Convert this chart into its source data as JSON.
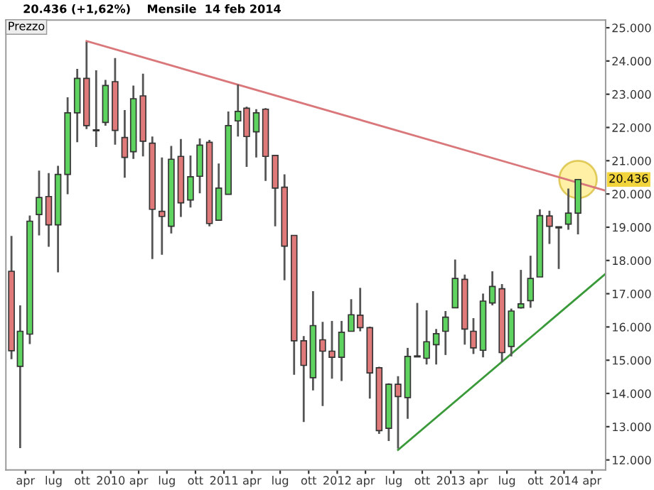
{
  "chart_data": {
    "type": "candlestick",
    "title": "20.436 (+1,62%)    Mensile  14 feb 2014",
    "x": [
      "2009-02-15",
      "2009-03-15",
      "2009-04-15",
      "2009-05-15",
      "2009-06-15",
      "2009-07-15",
      "2009-08-15",
      "2009-09-15",
      "2009-10-15",
      "2009-11-15",
      "2009-12-15",
      "2010-01-15",
      "2010-02-15",
      "2010-03-15",
      "2010-04-15",
      "2010-05-15",
      "2010-06-15",
      "2010-07-15",
      "2010-08-15",
      "2010-09-15",
      "2010-10-15",
      "2010-11-15",
      "2010-12-15",
      "2011-01-15",
      "2011-02-15",
      "2011-03-15",
      "2011-04-15",
      "2011-05-15",
      "2011-06-15",
      "2011-07-15",
      "2011-08-15",
      "2011-09-15",
      "2011-10-15",
      "2011-11-15",
      "2011-12-15",
      "2012-01-15",
      "2012-02-15",
      "2012-03-15",
      "2012-04-15",
      "2012-05-15",
      "2012-06-15",
      "2012-07-15",
      "2012-08-15",
      "2012-09-15",
      "2012-10-15",
      "2012-11-15",
      "2012-12-15",
      "2013-01-15",
      "2013-02-15",
      "2013-03-15",
      "2013-04-15",
      "2013-05-15",
      "2013-06-15",
      "2013-07-15",
      "2013-08-15",
      "2013-09-15",
      "2013-10-15",
      "2013-11-15",
      "2013-12-15",
      "2014-01-15",
      "2014-02-15"
    ],
    "ohlc": [
      [
        17674,
        18740,
        15029,
        15285
      ],
      [
        14816,
        16650,
        12354,
        15869
      ],
      [
        15784,
        19350,
        15485,
        19180
      ],
      [
        19380,
        20703,
        18753,
        19892
      ],
      [
        19922,
        20630,
        18412,
        19070
      ],
      [
        19070,
        20844,
        17645,
        20588
      ],
      [
        20588,
        22908,
        19991,
        22439
      ],
      [
        22439,
        23761,
        21556,
        23476
      ],
      [
        23476,
        24572,
        21953,
        22055
      ],
      [
        21900,
        23718,
        21415,
        21930
      ],
      [
        22153,
        23433,
        22055,
        23262
      ],
      [
        23377,
        24086,
        21484,
        21911
      ],
      [
        21698,
        22525,
        20489,
        21100
      ],
      [
        21271,
        23262,
        21057,
        22865
      ],
      [
        22950,
        23619,
        21129,
        21585
      ],
      [
        21527,
        21727,
        18045,
        19538
      ],
      [
        19478,
        21100,
        18173,
        19325
      ],
      [
        19027,
        21445,
        18814,
        21044
      ],
      [
        21129,
        21655,
        19308,
        19735
      ],
      [
        19820,
        21158,
        19593,
        20519
      ],
      [
        20532,
        21671,
        20020,
        21470
      ],
      [
        21556,
        21628,
        19027,
        19112
      ],
      [
        19210,
        20916,
        19200,
        20176
      ],
      [
        19991,
        22482,
        19991,
        22055
      ],
      [
        22197,
        23292,
        21727,
        22482
      ],
      [
        22580,
        22623,
        20815,
        21727
      ],
      [
        21868,
        22551,
        21100,
        22439
      ],
      [
        22551,
        22580,
        20391,
        21129
      ],
      [
        21158,
        21158,
        19027,
        20176
      ],
      [
        20204,
        20588,
        17405,
        18429
      ],
      [
        18753,
        18753,
        14560,
        15584
      ],
      [
        15584,
        15726,
        13139,
        14845
      ],
      [
        14474,
        17077,
        14090,
        16040
      ],
      [
        15613,
        16153,
        13621,
        15272
      ],
      [
        15272,
        16181,
        14446,
        15086
      ],
      [
        15086,
        16181,
        14375,
        15839
      ],
      [
        15869,
        16835,
        15869,
        16366
      ],
      [
        16352,
        17176,
        15869,
        15980
      ],
      [
        15980,
        16010,
        13848,
        14616
      ],
      [
        14773,
        14802,
        12781,
        12883
      ],
      [
        12951,
        14304,
        12567,
        14274
      ],
      [
        14274,
        14517,
        12341,
        13907
      ],
      [
        13877,
        15370,
        13237,
        15114
      ],
      [
        15114,
        16722,
        15114,
        15114
      ],
      [
        15058,
        16500,
        14871,
        15554
      ],
      [
        15468,
        15938,
        14871,
        15797
      ],
      [
        15869,
        16479,
        15157,
        16296
      ],
      [
        16577,
        18028,
        16577,
        17460
      ],
      [
        17432,
        17575,
        15468,
        15938
      ],
      [
        15869,
        16266,
        15187,
        15370
      ],
      [
        15299,
        17004,
        15086,
        16778
      ],
      [
        16722,
        17674,
        16650,
        17217
      ],
      [
        17149,
        17290,
        14944,
        15229
      ],
      [
        15413,
        16552,
        15114,
        16479
      ],
      [
        16577,
        17716,
        16552,
        16693
      ],
      [
        16791,
        18143,
        16577,
        17460
      ],
      [
        17503,
        19538,
        17503,
        19350
      ],
      [
        19338,
        19495,
        18497,
        19027
      ],
      [
        18996,
        18996,
        17745,
        18996
      ],
      [
        19094,
        20161,
        18924,
        19423
      ],
      [
        19423,
        20447,
        18783,
        20436
      ]
    ],
    "colors": [
      "#e07a7a",
      "#5fd35f",
      "#5fd35f",
      "#5fd35f",
      "#e07a7a",
      "#5fd35f",
      "#5fd35f",
      "#5fd35f",
      "#e07a7a",
      "#2f5f2f",
      "#5fd35f",
      "#e07a7a",
      "#e07a7a",
      "#5fd35f",
      "#e07a7a",
      "#e07a7a",
      "#e07a7a",
      "#5fd35f",
      "#e07a7a",
      "#5fd35f",
      "#5fd35f",
      "#e07a7a",
      "#5fd35f",
      "#5fd35f",
      "#5fd35f",
      "#e07a7a",
      "#5fd35f",
      "#e07a7a",
      "#e07a7a",
      "#e07a7a",
      "#e07a7a",
      "#e07a7a",
      "#5fd35f",
      "#e07a7a",
      "#e07a7a",
      "#5fd35f",
      "#5fd35f",
      "#e07a7a",
      "#e07a7a",
      "#e07a7a",
      "#5fd35f",
      "#e07a7a",
      "#5fd35f",
      "#222222",
      "#5fd35f",
      "#5fd35f",
      "#5fd35f",
      "#5fd35f",
      "#e07a7a",
      "#e07a7a",
      "#5fd35f",
      "#5fd35f",
      "#e07a7a",
      "#5fd35f",
      "#5fd35f",
      "#5fd35f",
      "#5fd35f",
      "#e07a7a",
      "#222222",
      "#5fd35f",
      "#5fd35f"
    ],
    "series": [
      {
        "type": "line",
        "color": "#d9777a",
        "x": [
          "2009-10-15",
          "2014-05-15"
        ],
        "values": [
          24600,
          20100
        ]
      },
      {
        "type": "line",
        "color": "#3a9a3a",
        "x": [
          "2012-07-15",
          "2014-05-15"
        ],
        "values": [
          12300,
          17600
        ]
      }
    ],
    "xlim": [
      "2009-01-28",
      "2014-05-15"
    ],
    "xticks": [
      {
        "value": "2009-04-01",
        "label": "apr"
      },
      {
        "value": "2009-07-01",
        "label": "lug"
      },
      {
        "value": "2009-10-01",
        "label": "ott"
      },
      {
        "value": "2010-01-01",
        "label": "2010"
      },
      {
        "value": "2010-04-01",
        "label": "apr"
      },
      {
        "value": "2010-07-01",
        "label": "lug"
      },
      {
        "value": "2010-10-01",
        "label": "ott"
      },
      {
        "value": "2011-01-01",
        "label": "2011"
      },
      {
        "value": "2011-04-01",
        "label": "apr"
      },
      {
        "value": "2011-07-01",
        "label": "lug"
      },
      {
        "value": "2011-10-01",
        "label": "ott"
      },
      {
        "value": "2012-01-01",
        "label": "2012"
      },
      {
        "value": "2012-04-01",
        "label": "apr"
      },
      {
        "value": "2012-07-01",
        "label": "lug"
      },
      {
        "value": "2012-10-01",
        "label": "ott"
      },
      {
        "value": "2013-01-01",
        "label": "2013"
      },
      {
        "value": "2013-04-01",
        "label": "apr"
      },
      {
        "value": "2013-07-01",
        "label": "lug"
      },
      {
        "value": "2013-10-01",
        "label": "ott"
      },
      {
        "value": "2014-01-01",
        "label": "2014"
      },
      {
        "value": "2014-04-01",
        "label": "apr"
      }
    ],
    "ylim": [
      11700,
      25230
    ],
    "yticks": [
      {
        "value": 12000,
        "label": "12.000"
      },
      {
        "value": 13000,
        "label": "13.000"
      },
      {
        "value": 14000,
        "label": "14.000"
      },
      {
        "value": 15000,
        "label": "15.000"
      },
      {
        "value": 16000,
        "label": "16.000"
      },
      {
        "value": 17000,
        "label": "17.000"
      },
      {
        "value": 18000,
        "label": "18.000"
      },
      {
        "value": 19000,
        "label": "19.000"
      },
      {
        "value": 20000,
        "label": "20.000"
      },
      {
        "value": 21000,
        "label": "21.000"
      },
      {
        "value": 22000,
        "label": "22.000"
      },
      {
        "value": 23000,
        "label": "23.000"
      },
      {
        "value": 24000,
        "label": "24.000"
      },
      {
        "value": 25000,
        "label": "25.000"
      }
    ],
    "annotations": [
      "Prezzo",
      {
        "text": "20.436",
        "x": "2014-02-15",
        "y": 20436
      }
    ],
    "grid": false,
    "legend": false
  }
}
